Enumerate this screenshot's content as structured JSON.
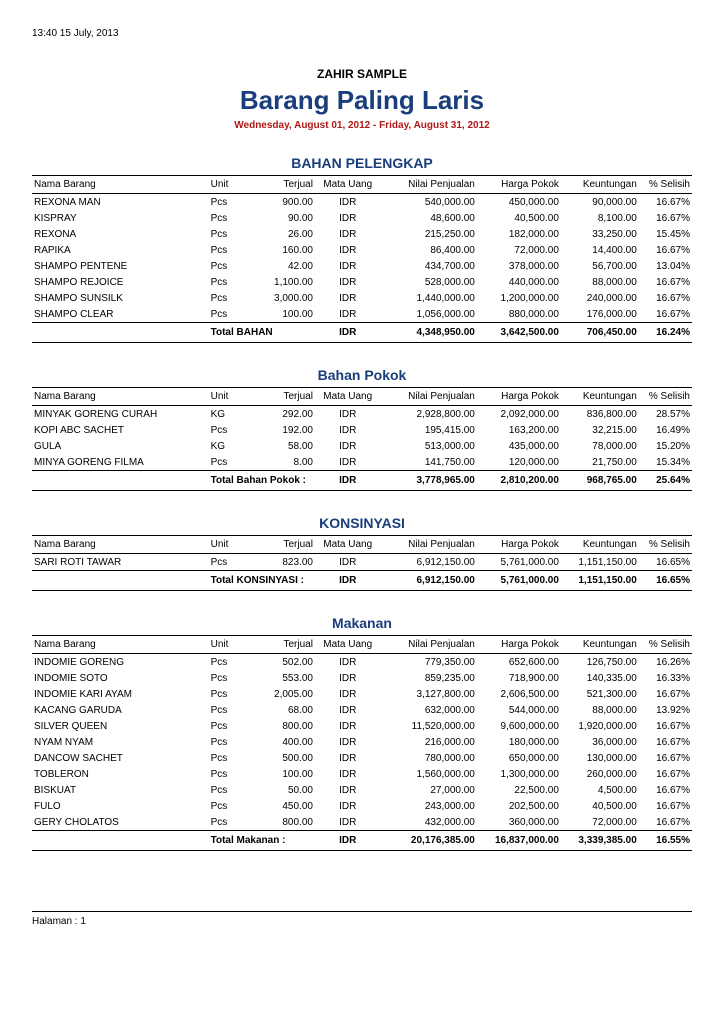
{
  "timestamp": "13:40   15 July, 2013",
  "company": "ZAHIR SAMPLE",
  "title": "Barang Paling Laris",
  "daterange": "Wednesday, August 01, 2012 - Friday, August 31, 2012",
  "columns": {
    "nama": "Nama Barang",
    "unit": "Unit",
    "terjual": "Terjual",
    "uang": "Mata Uang",
    "nilai": "Nilai Penjualan",
    "pokok": "Harga Pokok",
    "untung": "Keuntungan",
    "selisih": "% Selisih"
  },
  "sections": [
    {
      "title": "BAHAN PELENGKAP",
      "total_label": "Total BAHAN",
      "rows": [
        {
          "nama": "REXONA MAN",
          "unit": "Pcs",
          "terj": "900.00",
          "uang": "IDR",
          "nilai": "540,000.00",
          "pokok": "450,000.00",
          "untg": "90,000.00",
          "sel": "16.67%"
        },
        {
          "nama": "KISPRAY",
          "unit": "Pcs",
          "terj": "90.00",
          "uang": "IDR",
          "nilai": "48,600.00",
          "pokok": "40,500.00",
          "untg": "8,100.00",
          "sel": "16.67%"
        },
        {
          "nama": "REXONA",
          "unit": "Pcs",
          "terj": "26.00",
          "uang": "IDR",
          "nilai": "215,250.00",
          "pokok": "182,000.00",
          "untg": "33,250.00",
          "sel": "15.45%"
        },
        {
          "nama": "RAPIKA",
          "unit": "Pcs",
          "terj": "160.00",
          "uang": "IDR",
          "nilai": "86,400.00",
          "pokok": "72,000.00",
          "untg": "14,400.00",
          "sel": "16.67%"
        },
        {
          "nama": "SHAMPO PENTENE",
          "unit": "Pcs",
          "terj": "42.00",
          "uang": "IDR",
          "nilai": "434,700.00",
          "pokok": "378,000.00",
          "untg": "56,700.00",
          "sel": "13.04%"
        },
        {
          "nama": "SHAMPO REJOICE",
          "unit": "Pcs",
          "terj": "1,100.00",
          "uang": "IDR",
          "nilai": "528,000.00",
          "pokok": "440,000.00",
          "untg": "88,000.00",
          "sel": "16.67%"
        },
        {
          "nama": "SHAMPO SUNSILK",
          "unit": "Pcs",
          "terj": "3,000.00",
          "uang": "IDR",
          "nilai": "1,440,000.00",
          "pokok": "1,200,000.00",
          "untg": "240,000.00",
          "sel": "16.67%"
        },
        {
          "nama": "SHAMPO CLEAR",
          "unit": "Pcs",
          "terj": "100.00",
          "uang": "IDR",
          "nilai": "1,056,000.00",
          "pokok": "880,000.00",
          "untg": "176,000.00",
          "sel": "16.67%"
        }
      ],
      "total": {
        "uang": "IDR",
        "nilai": "4,348,950.00",
        "pokok": "3,642,500.00",
        "untg": "706,450.00",
        "sel": "16.24%"
      }
    },
    {
      "title": "Bahan Pokok",
      "total_label": "Total Bahan Pokok :",
      "rows": [
        {
          "nama": "MINYAK GORENG CURAH",
          "unit": "KG",
          "terj": "292.00",
          "uang": "IDR",
          "nilai": "2,928,800.00",
          "pokok": "2,092,000.00",
          "untg": "836,800.00",
          "sel": "28.57%"
        },
        {
          "nama": "KOPI ABC SACHET",
          "unit": "Pcs",
          "terj": "192.00",
          "uang": "IDR",
          "nilai": "195,415.00",
          "pokok": "163,200.00",
          "untg": "32,215.00",
          "sel": "16.49%"
        },
        {
          "nama": "GULA",
          "unit": "KG",
          "terj": "58.00",
          "uang": "IDR",
          "nilai": "513,000.00",
          "pokok": "435,000.00",
          "untg": "78,000.00",
          "sel": "15.20%"
        },
        {
          "nama": "MINYA GORENG FILMA",
          "unit": "Pcs",
          "terj": "8.00",
          "uang": "IDR",
          "nilai": "141,750.00",
          "pokok": "120,000.00",
          "untg": "21,750.00",
          "sel": "15.34%"
        }
      ],
      "total": {
        "uang": "IDR",
        "nilai": "3,778,965.00",
        "pokok": "2,810,200.00",
        "untg": "968,765.00",
        "sel": "25.64%"
      }
    },
    {
      "title": "KONSINYASI",
      "total_label": "Total KONSINYASI :",
      "rows": [
        {
          "nama": "SARI ROTI TAWAR",
          "unit": "Pcs",
          "terj": "823.00",
          "uang": "IDR",
          "nilai": "6,912,150.00",
          "pokok": "5,761,000.00",
          "untg": "1,151,150.00",
          "sel": "16.65%"
        }
      ],
      "total": {
        "uang": "IDR",
        "nilai": "6,912,150.00",
        "pokok": "5,761,000.00",
        "untg": "1,151,150.00",
        "sel": "16.65%"
      }
    },
    {
      "title": "Makanan",
      "total_label": "Total Makanan :",
      "rows": [
        {
          "nama": "INDOMIE GORENG",
          "unit": "Pcs",
          "terj": "502.00",
          "uang": "IDR",
          "nilai": "779,350.00",
          "pokok": "652,600.00",
          "untg": "126,750.00",
          "sel": "16.26%"
        },
        {
          "nama": "INDOMIE SOTO",
          "unit": "Pcs",
          "terj": "553.00",
          "uang": "IDR",
          "nilai": "859,235.00",
          "pokok": "718,900.00",
          "untg": "140,335.00",
          "sel": "16.33%"
        },
        {
          "nama": "INDOMIE KARI AYAM",
          "unit": "Pcs",
          "terj": "2,005.00",
          "uang": "IDR",
          "nilai": "3,127,800.00",
          "pokok": "2,606,500.00",
          "untg": "521,300.00",
          "sel": "16.67%"
        },
        {
          "nama": "KACANG GARUDA",
          "unit": "Pcs",
          "terj": "68.00",
          "uang": "IDR",
          "nilai": "632,000.00",
          "pokok": "544,000.00",
          "untg": "88,000.00",
          "sel": "13.92%"
        },
        {
          "nama": "SILVER QUEEN",
          "unit": "Pcs",
          "terj": "800.00",
          "uang": "IDR",
          "nilai": "11,520,000.00",
          "pokok": "9,600,000.00",
          "untg": "1,920,000.00",
          "sel": "16.67%"
        },
        {
          "nama": "NYAM NYAM",
          "unit": "Pcs",
          "terj": "400.00",
          "uang": "IDR",
          "nilai": "216,000.00",
          "pokok": "180,000.00",
          "untg": "36,000.00",
          "sel": "16.67%"
        },
        {
          "nama": "DANCOW SACHET",
          "unit": "Pcs",
          "terj": "500.00",
          "uang": "IDR",
          "nilai": "780,000.00",
          "pokok": "650,000.00",
          "untg": "130,000.00",
          "sel": "16.67%"
        },
        {
          "nama": "TOBLERON",
          "unit": "Pcs",
          "terj": "100.00",
          "uang": "IDR",
          "nilai": "1,560,000.00",
          "pokok": "1,300,000.00",
          "untg": "260,000.00",
          "sel": "16.67%"
        },
        {
          "nama": "BISKUAT",
          "unit": "Pcs",
          "terj": "50.00",
          "uang": "IDR",
          "nilai": "27,000.00",
          "pokok": "22,500.00",
          "untg": "4,500.00",
          "sel": "16.67%"
        },
        {
          "nama": "FULO",
          "unit": "Pcs",
          "terj": "450.00",
          "uang": "IDR",
          "nilai": "243,000.00",
          "pokok": "202,500.00",
          "untg": "40,500.00",
          "sel": "16.67%"
        },
        {
          "nama": "GERY CHOLATOS",
          "unit": "Pcs",
          "terj": "800.00",
          "uang": "IDR",
          "nilai": "432,000.00",
          "pokok": "360,000.00",
          "untg": "72,000.00",
          "sel": "16.67%"
        }
      ],
      "total": {
        "uang": "IDR",
        "nilai": "20,176,385.00",
        "pokok": "16,837,000.00",
        "untg": "3,339,385.00",
        "sel": "16.55%"
      }
    }
  ],
  "footer": "Halaman :  1"
}
